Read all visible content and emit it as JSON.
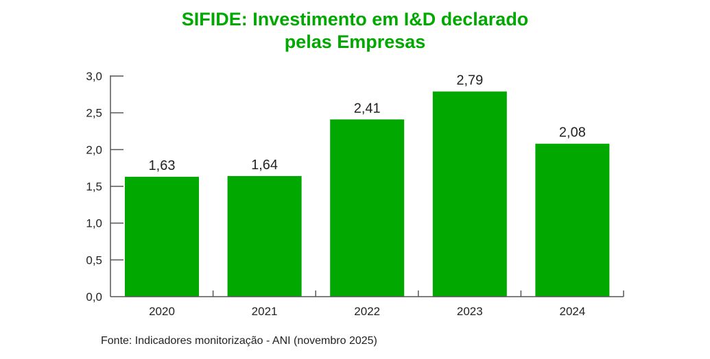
{
  "chart_data": {
    "type": "bar",
    "title_lines": [
      "SIFIDE: Investimento em I&D declarado",
      "pelas Empresas"
    ],
    "categories": [
      "2020",
      "2021",
      "2022",
      "2023",
      "2024"
    ],
    "values": [
      1.63,
      1.64,
      2.41,
      2.79,
      2.08
    ],
    "value_labels": [
      "1,63",
      "1,64",
      "2,41",
      "2,79",
      "2,08"
    ],
    "ylim": [
      0,
      3.0
    ],
    "yticks": [
      0,
      0.5,
      1.0,
      1.5,
      2.0,
      2.5,
      3.0
    ],
    "ytick_labels": [
      "0,0",
      "0,5",
      "1,0",
      "1,5",
      "2,0",
      "2,5",
      "3,0"
    ],
    "xlabel": "",
    "ylabel": "",
    "grid": false,
    "bar_color": "#00a800",
    "title_color": "#00a800",
    "source": "Fonte: Indicadores monitorização - ANI (novembro 2025)"
  }
}
